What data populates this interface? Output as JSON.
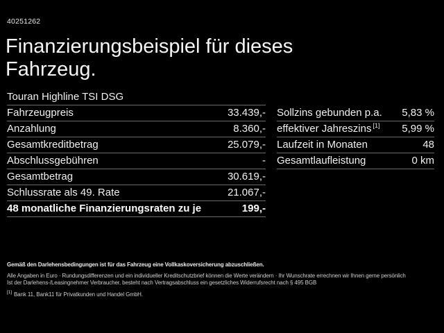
{
  "header": {
    "offer_id": "40251262",
    "title": "Finanzierungsbeispiel für dieses Fahrzeug."
  },
  "vehicle": {
    "model": "Touran Highline TSI DSG"
  },
  "finance_table": {
    "rows": [
      {
        "label": "Fahrzeugpreis",
        "value": "33.439,-"
      },
      {
        "label": "Anzahlung",
        "value": "8.360,-"
      },
      {
        "label": "Gesamtkreditbetrag",
        "value": "25.079,-"
      },
      {
        "label": "Abschlussgebühren",
        "value": "-"
      },
      {
        "label": "Gesamtbetrag",
        "value": "30.619,-"
      },
      {
        "label": "Schlussrate als 49. Rate",
        "value": "21.067,-"
      },
      {
        "label": "48 monatliche Finanzierungsraten zu je",
        "value": "199,-"
      }
    ]
  },
  "conditions_table": {
    "rows": [
      {
        "label": "Sollzins gebunden p.a.",
        "footnote": "",
        "value": "5,83 %"
      },
      {
        "label": "effektiver Jahreszins",
        "footnote": "[1]",
        "value": "5,99 %"
      },
      {
        "label": "Laufzeit in Monaten",
        "footnote": "",
        "value": "48"
      },
      {
        "label": "Gesamtlaufleistung",
        "footnote": "",
        "value": "0 km"
      }
    ]
  },
  "fineprint": {
    "line1": "Gemäß den Darlehensbedingungen ist für das Fahrzeug eine Vollkaskoversicherung abzuschließen.",
    "line2": "Alle Angaben in Euro · Rundungsdifferenzen und ein individueller Kreditschutzbrief können die Werte verändern · Ihr Wunschrate errechnen wir Ihnen gerne persönlich",
    "line3": "Ist der Darlehens-/Leasingnehmer Verbraucher, besteht nach Vertragsabschluss ein gesetzliches Widerrufsrecht nach § 495 BGB",
    "footnote_marker": "[1]",
    "footnote_text": "Bank 11, Bank11 für Privatkunden und Handel GmbH."
  },
  "colors": {
    "background": "#000000",
    "text": "#f2f2f2",
    "divider": "#6b6b6b",
    "fineprint_text": "#cfcfcf"
  }
}
